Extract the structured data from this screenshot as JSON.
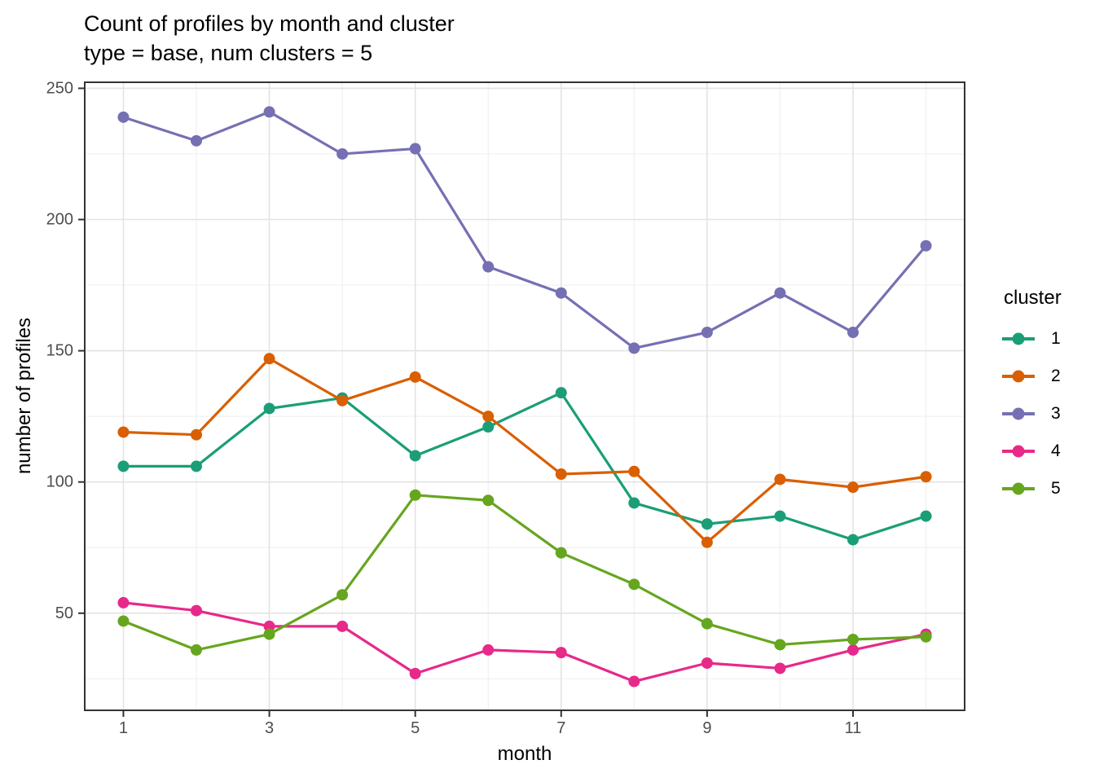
{
  "title": "Count of profiles by month and cluster",
  "subtitle": "type = base, num clusters = 5",
  "chart_data": {
    "type": "line",
    "x": [
      1,
      2,
      3,
      4,
      5,
      6,
      7,
      8,
      9,
      10,
      11,
      12
    ],
    "series": [
      {
        "name": "1",
        "color": "#1B9E77",
        "values": [
          106,
          106,
          128,
          132,
          110,
          121,
          134,
          92,
          84,
          87,
          78,
          87
        ]
      },
      {
        "name": "2",
        "color": "#D95F02",
        "values": [
          119,
          118,
          147,
          131,
          140,
          125,
          103,
          104,
          77,
          101,
          98,
          102
        ]
      },
      {
        "name": "3",
        "color": "#7570B3",
        "values": [
          239,
          230,
          241,
          225,
          227,
          182,
          172,
          151,
          157,
          172,
          157,
          190
        ]
      },
      {
        "name": "4",
        "color": "#E7298A",
        "values": [
          54,
          51,
          45,
          45,
          27,
          36,
          35,
          24,
          31,
          29,
          36,
          42
        ]
      },
      {
        "name": "5",
        "color": "#66A61E",
        "values": [
          47,
          36,
          42,
          57,
          95,
          93,
          73,
          61,
          46,
          38,
          40,
          41
        ]
      }
    ],
    "title": "Count of profiles by month and cluster",
    "subtitle": "type = base, num clusters = 5",
    "xlabel": "month",
    "ylabel": "number of profiles",
    "x_ticks": [
      1,
      3,
      5,
      7,
      9,
      11
    ],
    "x_minor": [
      2,
      4,
      6,
      8,
      10,
      12
    ],
    "y_ticks": [
      50,
      100,
      150,
      200,
      250
    ],
    "y_minor": [
      25,
      75,
      125,
      175,
      225
    ],
    "xlim": [
      0.47,
      12.53
    ],
    "ylim": [
      13,
      252.3
    ],
    "grid": true,
    "legend": {
      "title": "cluster",
      "position": "right"
    }
  },
  "style": {
    "grid_major_color": "#e3e3e3",
    "grid_minor_color": "#f0f0f0",
    "panel_border_color": "#333333",
    "tick_color": "#333333",
    "tick_label_color": "#4d4d4d"
  }
}
